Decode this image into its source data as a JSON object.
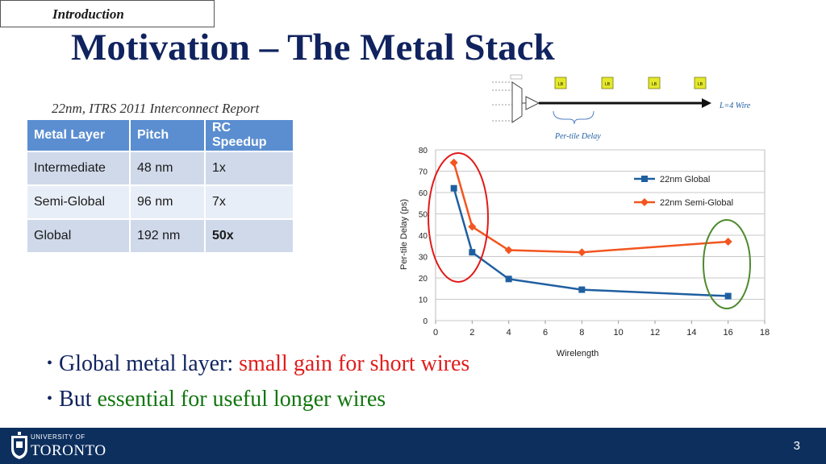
{
  "section_tag": "Introduction",
  "title": "Motivation – The Metal Stack",
  "subtitle": "22nm, ITRS 2011 Interconnect Report",
  "table": {
    "headers": [
      "Metal Layer",
      "Pitch",
      "RC Speedup"
    ],
    "rows": [
      [
        "Intermediate",
        "48 nm",
        "1x"
      ],
      [
        "Semi-Global",
        "96 nm",
        "7x"
      ],
      [
        "Global",
        "192 nm",
        "50x"
      ]
    ]
  },
  "wire_diagram": {
    "block_label": "LB",
    "wire_label": "L=4 Wire",
    "brace_label": "Per-tile Delay"
  },
  "bullets": [
    {
      "prefix": "Global metal layer: ",
      "highlight": "small gain for short wires",
      "color": "#e11d1d"
    },
    {
      "prefix": "But ",
      "highlight": "essential for useful longer wires",
      "color": "#12760f"
    }
  ],
  "footer": {
    "univ_line": "UNIVERSITY OF",
    "univ_name": "TORONTO",
    "page_number": "3",
    "background": "#0d2f5e"
  },
  "colors": {
    "title": "#10235f",
    "table_header": "#5b8ed0",
    "series_global": "#1f5fa0",
    "series_semi": "#f2551f",
    "circle_red": "#e21a1a",
    "circle_green": "#4e8a2e"
  },
  "chart_data": {
    "type": "line",
    "xlabel": "Wirelength",
    "ylabel": "Per-tile Delay (ps)",
    "xlim": [
      0,
      18
    ],
    "ylim": [
      0,
      80
    ],
    "xticks": [
      0,
      2,
      4,
      6,
      8,
      10,
      12,
      14,
      16,
      18
    ],
    "yticks": [
      0,
      10,
      20,
      30,
      40,
      50,
      60,
      70,
      80
    ],
    "grid": true,
    "legend_position": "top-right",
    "series": [
      {
        "name": "22nm Global",
        "color": "#1f5fa0",
        "marker": "square",
        "x": [
          1,
          2,
          4,
          8,
          16
        ],
        "y": [
          62,
          32,
          19.5,
          14.5,
          11.5
        ]
      },
      {
        "name": "22nm Semi-Global",
        "color": "#f2551f",
        "marker": "diamond",
        "x": [
          1,
          2,
          4,
          8,
          16
        ],
        "y": [
          74,
          44,
          33,
          32,
          37
        ]
      }
    ]
  }
}
